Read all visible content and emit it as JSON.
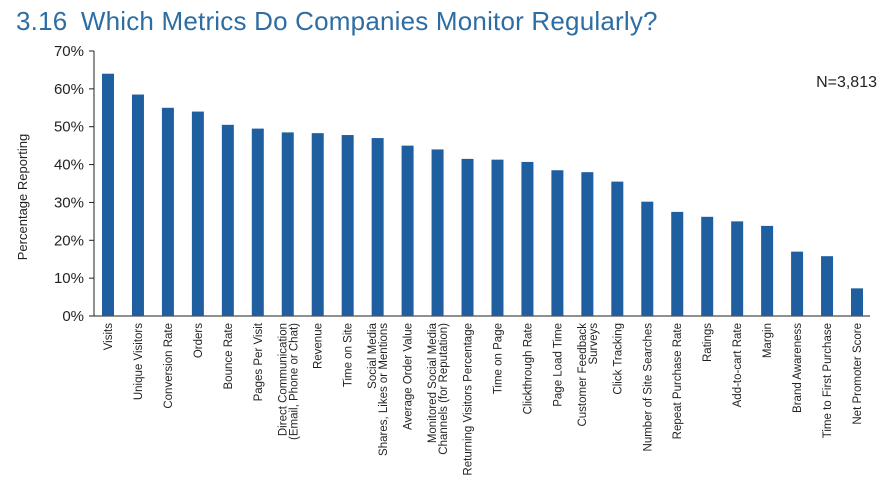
{
  "title": {
    "number": "3.16",
    "text": "Which Metrics Do Companies Monitor Regularly?"
  },
  "colors": {
    "bar": "#1f5fa0",
    "title": "#2e6da4",
    "axis": "#231f20"
  },
  "chart_data": {
    "type": "bar",
    "ylabel": "Percentage Reporting",
    "ylim": [
      0,
      70
    ],
    "yticks": [
      "0%",
      "10%",
      "20%",
      "30%",
      "40%",
      "50%",
      "60%",
      "70%"
    ],
    "note": "N=3,813",
    "grid": false,
    "categories": [
      [
        "Visits"
      ],
      [
        "Unique Visitors"
      ],
      [
        "Conversion Rate"
      ],
      [
        "Orders"
      ],
      [
        "Bounce Rate"
      ],
      [
        "Pages Per Visit"
      ],
      [
        "Direct Communication",
        "(Email, Phone or Chat)"
      ],
      [
        "Revenue"
      ],
      [
        "Time on Site"
      ],
      [
        "Social Media",
        "Shares, Likes or Mentions"
      ],
      [
        "Average Order Value"
      ],
      [
        "Monitored Social Media",
        "Channels (for Reputation)"
      ],
      [
        "Returning Visitors Percentage"
      ],
      [
        "Time on Page"
      ],
      [
        "Clickthrough Rate"
      ],
      [
        "Page Load Time"
      ],
      [
        "Customer Feedback",
        "Surveys"
      ],
      [
        "Click Tracking"
      ],
      [
        "Number of Site Searches"
      ],
      [
        "Repeat Purchase Rate"
      ],
      [
        "Ratings"
      ],
      [
        "Add-to-cart Rate"
      ],
      [
        "Margin"
      ],
      [
        "Brand Awareness"
      ],
      [
        "Time to First Purchase"
      ],
      [
        "Net Promoter Score"
      ]
    ],
    "values": [
      64,
      58.5,
      55,
      54,
      50.5,
      49.5,
      48.5,
      48.3,
      47.8,
      47,
      45,
      44,
      41.5,
      41.3,
      40.7,
      38.5,
      38,
      35.5,
      30.2,
      27.5,
      26.2,
      25,
      23.8,
      17,
      15.8,
      7.3
    ]
  }
}
